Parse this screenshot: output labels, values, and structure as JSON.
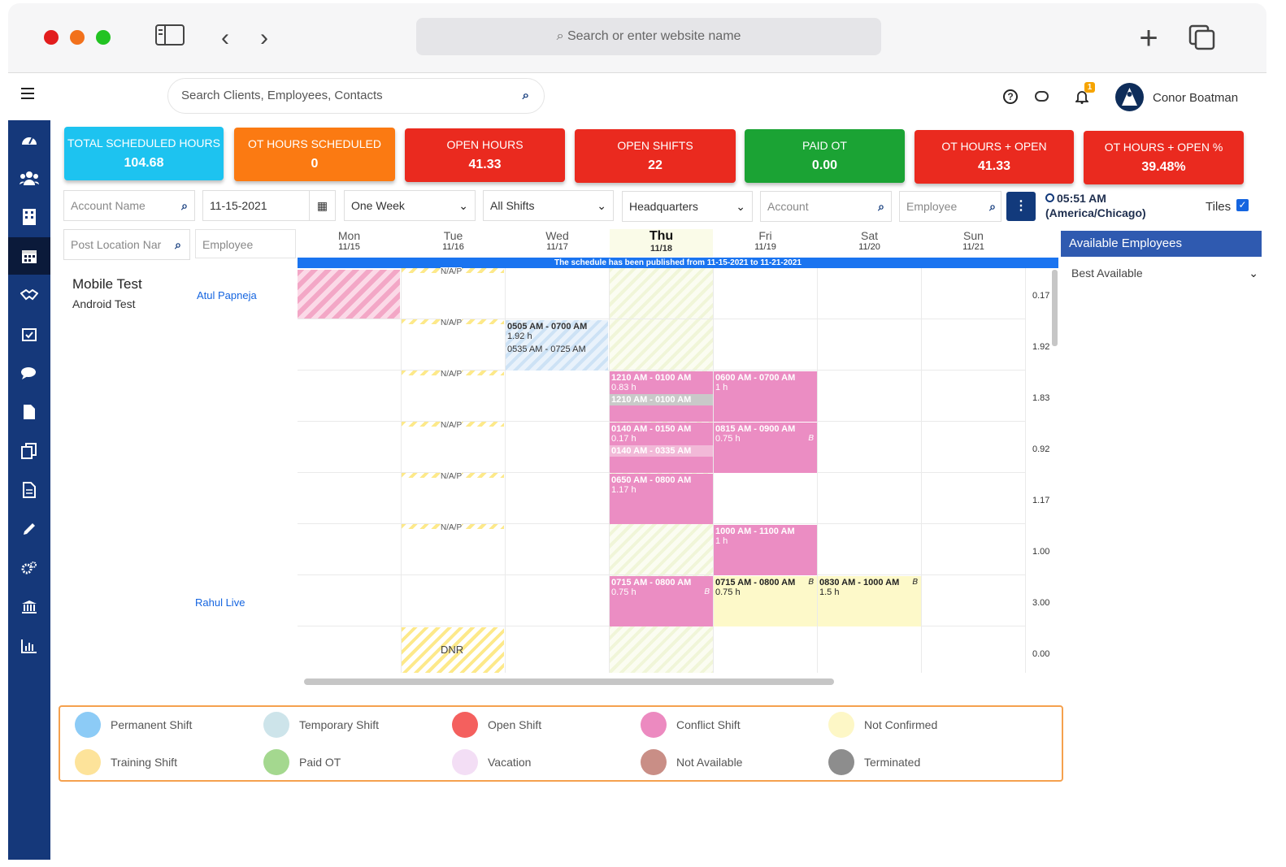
{
  "browser": {
    "search_placeholder": "Search or enter website name"
  },
  "header": {
    "search_placeholder": "Search Clients, Employees, Contacts",
    "user_name": "Conor Boatman",
    "notif_count": "1"
  },
  "stats": [
    {
      "label": "TOTAL SCHEDULED HOURS",
      "value": "104.68",
      "color": "#1dc3f0"
    },
    {
      "label": "OT HOURS SCHEDULED",
      "value": "0",
      "color": "#fb7a12"
    },
    {
      "label": "OPEN HOURS",
      "value": "41.33",
      "color": "#ea2a1f"
    },
    {
      "label": "OPEN SHIFTS",
      "value": "22",
      "color": "#ea2a1f"
    },
    {
      "label": "PAID OT",
      "value": "0.00",
      "color": "#1ba334"
    },
    {
      "label": "OT HOURS + OPEN",
      "value": "41.33",
      "color": "#ea2a1f"
    },
    {
      "label": "OT HOURS + OPEN %",
      "value": "39.48%",
      "color": "#ea2a1f"
    }
  ],
  "filters": {
    "account_name_placeholder": "Account Name",
    "date": "11-15-2021",
    "range": "One Week",
    "shifts": "All Shifts",
    "location": "Headquarters",
    "account_placeholder": "Account",
    "employee_placeholder": "Employee",
    "time": "05:51 AM",
    "timezone": "(America/Chicago)",
    "tiles_label": "Tiles",
    "post_location_placeholder": "Post Location Nar",
    "employee_col_placeholder": "Employee"
  },
  "days": [
    {
      "name": "Mon",
      "date": "11/15"
    },
    {
      "name": "Tue",
      "date": "11/16"
    },
    {
      "name": "Wed",
      "date": "11/17"
    },
    {
      "name": "Thu",
      "date": "11/18"
    },
    {
      "name": "Fri",
      "date": "11/19"
    },
    {
      "name": "Sat",
      "date": "11/20"
    },
    {
      "name": "Sun",
      "date": "11/21"
    }
  ],
  "banner": "The schedule has been published from 11-15-2021 to 11-21-2021",
  "client": {
    "name": "Mobile Test",
    "sub": "Android Test"
  },
  "employees": [
    {
      "name": "Atul Papneja"
    },
    {
      "name": "Rahul Live"
    }
  ],
  "row_totals": [
    "0.17",
    "1.92",
    "1.83",
    "0.92",
    "1.17",
    "1.00",
    "3.00",
    "0.00"
  ],
  "na_label": "N/A/P",
  "dnr_label": "DNR",
  "shifts": {
    "wed1": {
      "time": "0505 AM - 0700 AM",
      "hours": "1.92 h",
      "actual": "0535 AM - 0725 AM"
    },
    "thu1": {
      "time": "1210 AM - 0100 AM",
      "hours": "0.83 h",
      "actual": "1210 AM - 0100 AM"
    },
    "fri1": {
      "time": "0600 AM - 0700 AM",
      "hours": "1 h"
    },
    "thu2": {
      "time": "0140 AM - 0150 AM",
      "hours": "0.17 h",
      "actual": "0140 AM - 0335 AM"
    },
    "fri2": {
      "time": "0815 AM - 0900 AM",
      "hours": "0.75 h"
    },
    "thu3": {
      "time": "0650 AM - 0800 AM",
      "hours": "1.17 h"
    },
    "fri3": {
      "time": "1000 AM - 1100 AM",
      "hours": "1 h"
    },
    "thu4": {
      "time": "0715 AM - 0800 AM",
      "hours": "0.75 h"
    },
    "fri4": {
      "time": "0715 AM - 0800 AM",
      "hours": "0.75 h"
    },
    "sat4": {
      "time": "0830 AM - 1000 AM",
      "hours": "1.5 h"
    },
    "b_mark": "B"
  },
  "side_panel": {
    "title": "Available Employees",
    "select": "Best Available"
  },
  "legend": [
    {
      "label": "Permanent Shift",
      "color": "#8ccbf6"
    },
    {
      "label": "Temporary Shift",
      "color": "#cde4ea"
    },
    {
      "label": "Open Shift",
      "color": "#f4605e"
    },
    {
      "label": "Conflict Shift",
      "color": "#ec8ac0"
    },
    {
      "label": "Not Confirmed",
      "color": "#fdf7c6"
    },
    {
      "label": "Training Shift",
      "color": "#fde39a"
    },
    {
      "label": "Paid OT",
      "color": "#a4d88f"
    },
    {
      "label": "Vacation",
      "color": "#f3def5"
    },
    {
      "label": "Not Available",
      "color": "#c98e86"
    },
    {
      "label": "Terminated",
      "color": "#8d8d8d"
    }
  ]
}
